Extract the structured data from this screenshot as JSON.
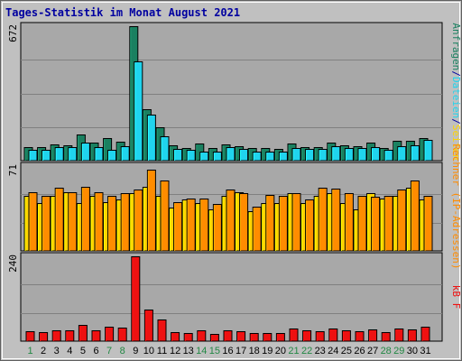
{
  "title": "Tages-Statistik im Monat August 2021",
  "colors": {
    "background": "#c0c0c0",
    "panel": "#a8a8a8",
    "title": "#0000a0",
    "anfragen": "#1a8060",
    "dateien": "#20d4ee",
    "seiten": "#ffd400",
    "rechner": "#ff8c00",
    "kbf": "#ee1111",
    "weekend_label": "#228844",
    "weekday_label": "#000000"
  },
  "chart_data": [
    {
      "type": "bar",
      "name": "hits-files-panel",
      "ymax_label": "672",
      "ylim": [
        0,
        672
      ],
      "categories": [
        "1",
        "2",
        "3",
        "4",
        "5",
        "6",
        "7",
        "8",
        "9",
        "10",
        "11",
        "12",
        "13",
        "14",
        "15",
        "16",
        "17",
        "18",
        "19",
        "20",
        "21",
        "22",
        "23",
        "24",
        "25",
        "26",
        "27",
        "28",
        "29",
        "30",
        "31"
      ],
      "weekend": [
        1,
        7,
        8,
        14,
        15,
        21,
        22,
        28,
        29
      ],
      "series": [
        {
          "name": "Anfragen",
          "color_key": "anfragen",
          "values": [
            67,
            67,
            80,
            76,
            129,
            90,
            112,
            95,
            672,
            256,
            165,
            76,
            62,
            85,
            63,
            81,
            72,
            62,
            62,
            57,
            85,
            67,
            67,
            90,
            76,
            72,
            90,
            63,
            98,
            98,
            112
          ]
        },
        {
          "name": "Dateien",
          "color_key": "dateien",
          "values": [
            54,
            54,
            67,
            67,
            90,
            67,
            54,
            72,
            495,
            229,
            121,
            58,
            54,
            45,
            45,
            67,
            58,
            45,
            45,
            45,
            63,
            58,
            58,
            72,
            63,
            63,
            67,
            54,
            72,
            76,
            103
          ]
        }
      ],
      "legend_segments": [
        {
          "text": "Anfragen",
          "color_key": "anfragen"
        },
        {
          "text": "/",
          "color_key": "title"
        },
        {
          "text": "Dateien",
          "color_key": "dateien"
        },
        {
          "text": "/",
          "color_key": "title"
        },
        {
          "text": "Seiten",
          "color_key": "seiten"
        }
      ]
    },
    {
      "type": "bar",
      "name": "sites-visits-panel",
      "ymax_label": "71",
      "ylim": [
        0,
        71
      ],
      "categories": [
        "1",
        "2",
        "3",
        "4",
        "5",
        "6",
        "7",
        "8",
        "9",
        "10",
        "11",
        "12",
        "13",
        "14",
        "15",
        "16",
        "17",
        "18",
        "19",
        "20",
        "21",
        "22",
        "23",
        "24",
        "25",
        "26",
        "27",
        "28",
        "29",
        "30",
        "31"
      ],
      "weekend": [
        1,
        7,
        8,
        14,
        15,
        21,
        22,
        28,
        29
      ],
      "series": [
        {
          "name": "Seiten",
          "color_key": "seiten",
          "values": [
            46,
            40,
            46,
            49,
            40,
            46,
            41,
            43,
            48,
            54,
            46,
            36,
            43,
            40,
            35,
            46,
            49,
            33,
            40,
            40,
            48,
            40,
            46,
            48,
            40,
            35,
            48,
            44,
            46,
            53,
            43
          ]
        },
        {
          "name": "Rechner",
          "color_key": "rechner",
          "values": [
            49,
            46,
            53,
            49,
            54,
            49,
            46,
            48,
            51,
            68,
            59,
            41,
            44,
            44,
            39,
            51,
            48,
            37,
            47,
            46,
            48,
            43,
            53,
            52,
            48,
            46,
            45,
            46,
            51,
            59,
            46
          ]
        }
      ],
      "legend_segments": [
        {
          "text": "Rechner",
          "color_key": "rechner"
        },
        {
          "text": " (IP-Adressen)",
          "color_key": "rechner"
        }
      ]
    },
    {
      "type": "bar",
      "name": "kbf-panel",
      "ymax_label": "240",
      "ylim": [
        0,
        240
      ],
      "categories": [
        "1",
        "2",
        "3",
        "4",
        "5",
        "6",
        "7",
        "8",
        "9",
        "10",
        "11",
        "12",
        "13",
        "14",
        "15",
        "16",
        "17",
        "18",
        "19",
        "20",
        "21",
        "22",
        "23",
        "24",
        "25",
        "26",
        "27",
        "28",
        "29",
        "30",
        "31"
      ],
      "weekend": [
        1,
        7,
        8,
        14,
        15,
        21,
        22,
        28,
        29
      ],
      "series": [
        {
          "name": "kB F",
          "color_key": "kbf",
          "values": [
            28,
            25,
            30,
            30,
            45,
            30,
            40,
            38,
            240,
            90,
            60,
            25,
            22,
            30,
            20,
            30,
            28,
            22,
            22,
            22,
            35,
            30,
            28,
            35,
            30,
            28,
            32,
            25,
            35,
            32,
            40
          ]
        }
      ],
      "legend_segments": [
        {
          "text": "kB F",
          "color_key": "kbf"
        }
      ]
    }
  ]
}
